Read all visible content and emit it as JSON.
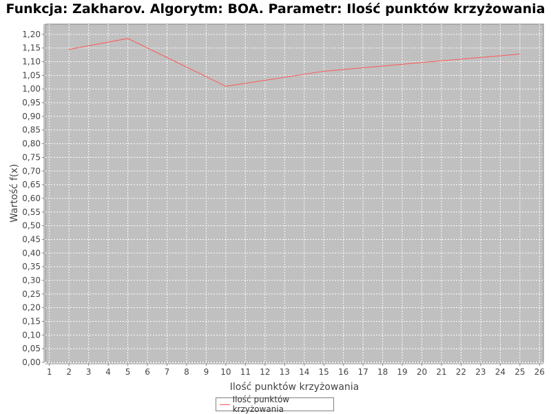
{
  "chart_data": {
    "type": "line",
    "title": "Funkcja: Zakharov. Algorytm: BOA. Parametr: Ilość punktów krzyżowania",
    "xlabel": "Ilość punktów krzyżowania",
    "ylabel": "Wartość f(x)",
    "xlim": [
      0.8,
      26.2
    ],
    "ylim": [
      0,
      1.2375
    ],
    "x_ticks": [
      1,
      2,
      3,
      4,
      5,
      6,
      7,
      8,
      9,
      10,
      11,
      12,
      13,
      14,
      15,
      16,
      17,
      18,
      19,
      20,
      21,
      22,
      23,
      24,
      25,
      26
    ],
    "y_ticks": [
      "0,00",
      "0,05",
      "0,10",
      "0,15",
      "0,20",
      "0,25",
      "0,30",
      "0,35",
      "0,40",
      "0,45",
      "0,50",
      "0,55",
      "0,60",
      "0,65",
      "0,70",
      "0,75",
      "0,80",
      "0,85",
      "0,90",
      "0,95",
      "1,00",
      "1,05",
      "1,10",
      "1,15",
      "1,20"
    ],
    "grid": true,
    "legend_position": "bottom",
    "plot_background": "#c0c0c0",
    "series": [
      {
        "name": "Ilość punktów krzyżowania",
        "color": "#ff5555",
        "x": [
          2,
          5,
          10,
          15,
          20,
          25
        ],
        "y": [
          1.145,
          1.185,
          1.01,
          1.065,
          1.097,
          1.128
        ]
      }
    ]
  }
}
